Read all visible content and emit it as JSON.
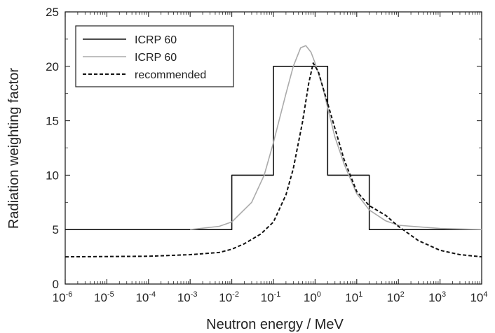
{
  "chart_data": {
    "type": "line",
    "xlabel": "Neutron energy / MeV",
    "ylabel": "Radiation weighting factor",
    "xscale": "log",
    "xlim": [
      1e-06,
      10000
    ],
    "ylim": [
      0,
      25
    ],
    "x_ticks": [
      {
        "base": "10",
        "exp": "-6",
        "value": 1e-06
      },
      {
        "base": "10",
        "exp": "-5",
        "value": 1e-05
      },
      {
        "base": "10",
        "exp": "-4",
        "value": 0.0001
      },
      {
        "base": "10",
        "exp": "-3",
        "value": 0.001
      },
      {
        "base": "10",
        "exp": "-2",
        "value": 0.01
      },
      {
        "base": "10",
        "exp": "-1",
        "value": 0.1
      },
      {
        "base": "10",
        "exp": "0",
        "value": 1
      },
      {
        "base": "10",
        "exp": "1",
        "value": 10
      },
      {
        "base": "10",
        "exp": "2",
        "value": 100
      },
      {
        "base": "10",
        "exp": "3",
        "value": 1000
      },
      {
        "base": "10",
        "exp": "4",
        "value": 10000
      }
    ],
    "y_ticks": [
      {
        "label": "0",
        "value": 0
      },
      {
        "label": "5",
        "value": 5
      },
      {
        "label": "10",
        "value": 10
      },
      {
        "label": "15",
        "value": 15
      },
      {
        "label": "20",
        "value": 20
      },
      {
        "label": "25",
        "value": 25
      }
    ],
    "grid": false,
    "legend_position": "top-left",
    "series": [
      {
        "name": "ICRP 60",
        "style": "solid",
        "color": "#111111",
        "x": [
          1e-06,
          0.01,
          0.01,
          0.1,
          0.1,
          2,
          2,
          20,
          20,
          10000
        ],
        "y": [
          5,
          5,
          10,
          10,
          20,
          20,
          10,
          10,
          5,
          5
        ]
      },
      {
        "name": "ICRP 60",
        "style": "solid",
        "color": "#aaaaaa",
        "x": [
          0.001,
          0.005,
          0.01,
          0.03,
          0.06,
          0.1,
          0.2,
          0.3,
          0.45,
          0.6,
          0.8,
          1,
          1.5,
          2,
          3,
          5,
          10,
          20,
          50,
          100,
          1000,
          10000
        ],
        "y": [
          5,
          5.3,
          5.7,
          7.5,
          10,
          13,
          17.5,
          20,
          21.7,
          21.9,
          21.3,
          20.3,
          18.2,
          16.2,
          13.5,
          11,
          8.3,
          6.8,
          5.8,
          5.4,
          5.1,
          5
        ]
      },
      {
        "name": "recommended",
        "style": "dashed",
        "color": "#111111",
        "x": [
          1e-06,
          0.0001,
          0.001,
          0.005,
          0.01,
          0.02,
          0.05,
          0.1,
          0.2,
          0.3,
          0.5,
          0.7,
          0.9,
          1.2,
          1.5,
          2,
          3,
          5,
          10,
          20,
          50,
          100,
          300,
          1000,
          3000,
          10000
        ],
        "y": [
          2.5,
          2.55,
          2.7,
          2.9,
          3.2,
          3.7,
          4.6,
          5.7,
          8.2,
          10.6,
          14.9,
          18.4,
          20.3,
          19.5,
          18.2,
          16.6,
          14.3,
          11.4,
          8.5,
          7.2,
          6.3,
          5.3,
          4,
          3.1,
          2.7,
          2.5
        ]
      }
    ]
  }
}
